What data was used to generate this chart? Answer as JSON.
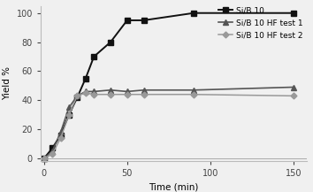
{
  "series": [
    {
      "label": "Si/B 10",
      "color": "#111111",
      "marker": "s",
      "markersize": 4.5,
      "linewidth": 1.4,
      "x": [
        0,
        5,
        10,
        15,
        20,
        25,
        30,
        40,
        50,
        60,
        90,
        150
      ],
      "y": [
        0,
        7,
        16,
        30,
        42,
        55,
        70,
        80,
        95,
        95,
        100,
        100
      ]
    },
    {
      "label": "Si/B 10 HF test 1",
      "color": "#555555",
      "marker": "^",
      "markersize": 4.5,
      "linewidth": 1.2,
      "x": [
        0,
        5,
        10,
        15,
        20,
        25,
        30,
        40,
        50,
        60,
        90,
        150
      ],
      "y": [
        0,
        5,
        18,
        35,
        43,
        46,
        46,
        47,
        46,
        47,
        47,
        49
      ]
    },
    {
      "label": "Si/B 10 HF test 2",
      "color": "#999999",
      "marker": "D",
      "markersize": 3.5,
      "linewidth": 1.1,
      "x": [
        0,
        5,
        10,
        15,
        20,
        25,
        30,
        40,
        50,
        60,
        90,
        150
      ],
      "y": [
        0,
        3,
        14,
        30,
        43,
        45,
        44,
        44,
        44,
        44,
        44,
        43
      ]
    }
  ],
  "xlabel": "Time (min)",
  "ylabel": "Yield %",
  "xlim": [
    -2,
    158
  ],
  "ylim": [
    -2,
    105
  ],
  "xticks": [
    0,
    50,
    100,
    150
  ],
  "yticks": [
    0,
    20,
    40,
    60,
    80,
    100
  ],
  "legend_loc": "upper right",
  "legend_fontsize": 6.5,
  "axis_fontsize": 7.5,
  "tick_fontsize": 7,
  "background_color": "#f0f0f0"
}
